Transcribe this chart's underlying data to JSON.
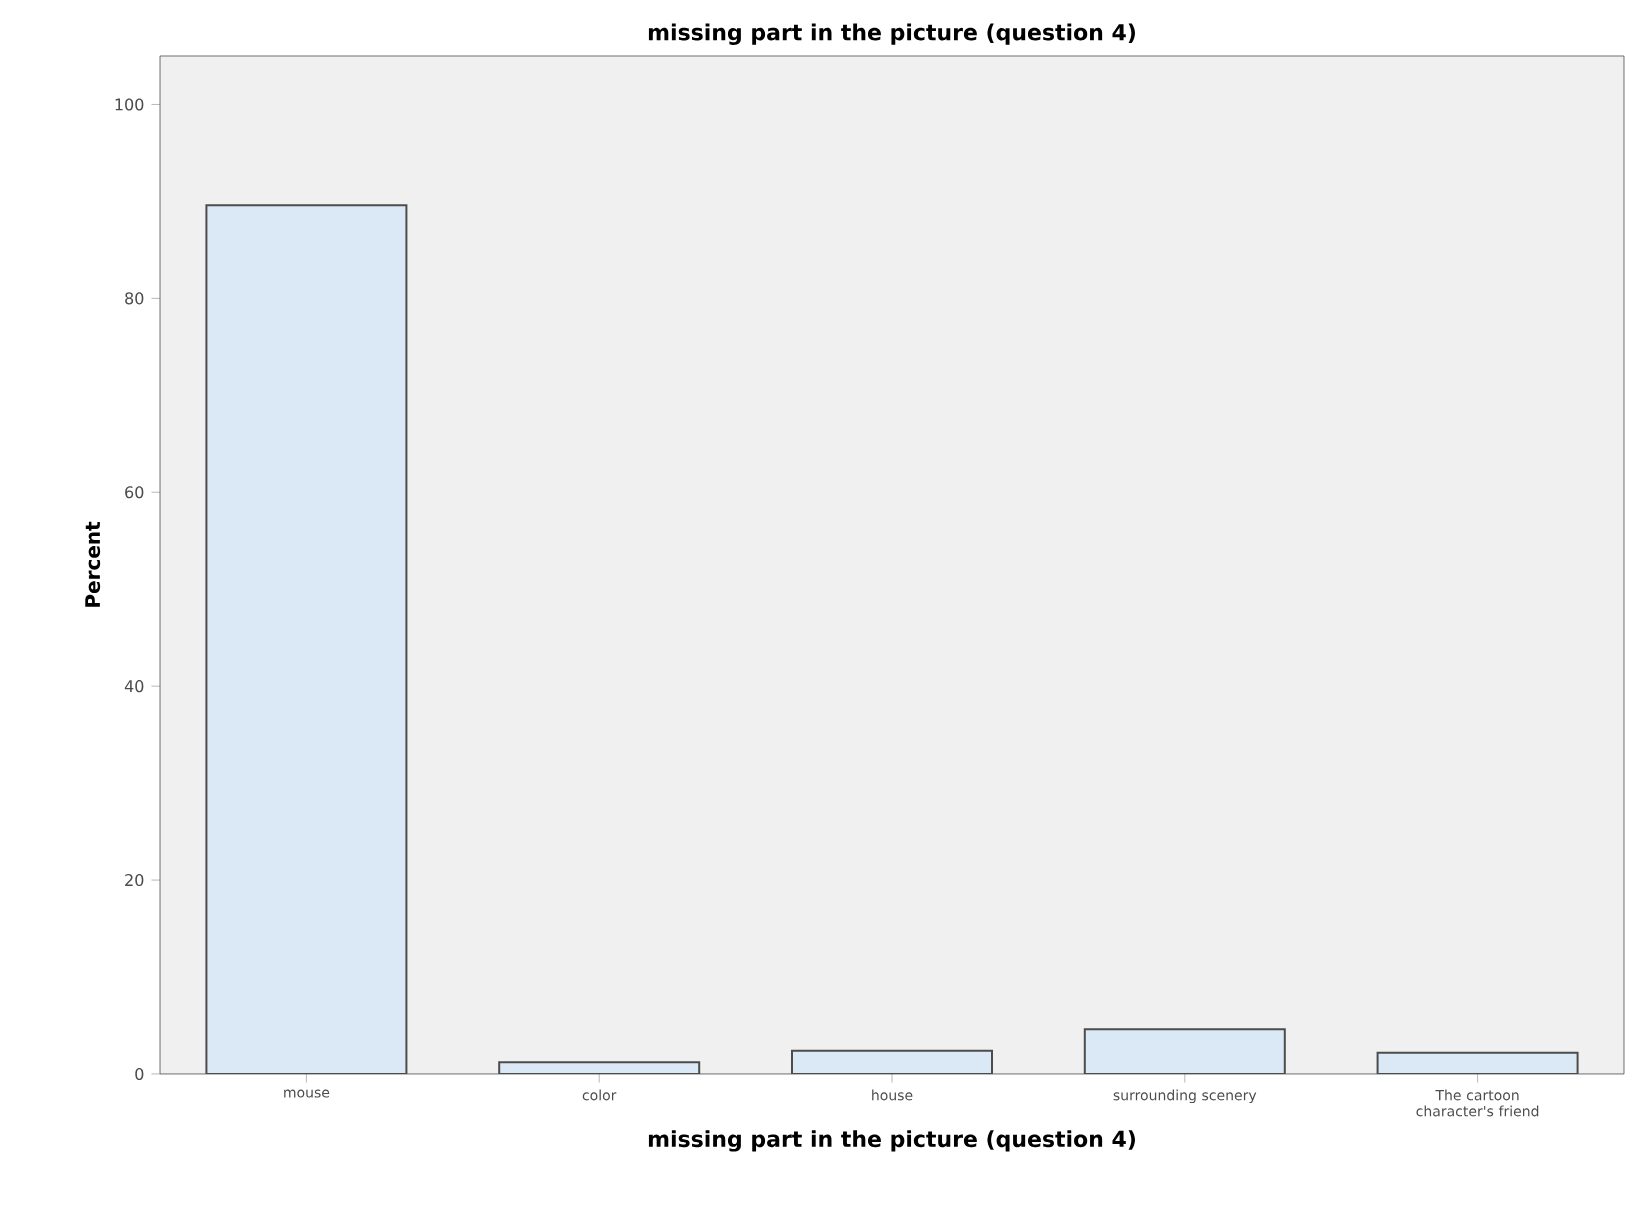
{
  "chart_data": {
    "type": "bar",
    "title": "missing part in the picture (question 4)",
    "xlabel": "missing part in the picture (question 4)",
    "ylabel": "Percent",
    "categories": [
      "mouse",
      "color",
      "house",
      "surrounding scenery",
      "The cartoon character's friend"
    ],
    "values": [
      89.6,
      1.2,
      2.4,
      4.6,
      2.2
    ],
    "color": "#dbe8f5",
    "ylim": [
      0,
      105
    ],
    "yticks": [
      0,
      20,
      40,
      60,
      80,
      100
    ],
    "grid": false
  }
}
